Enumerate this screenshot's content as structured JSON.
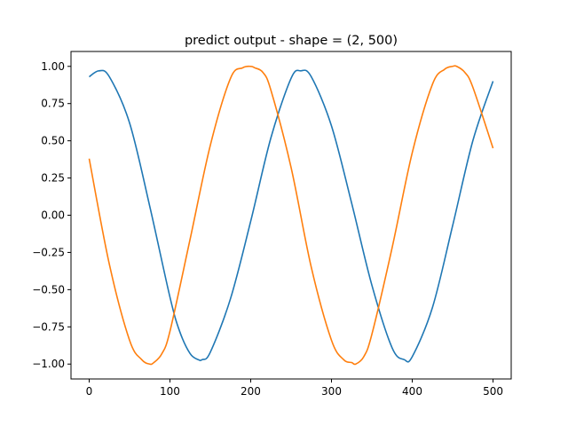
{
  "chart_data": {
    "type": "line",
    "title": "predict output - shape = (2, 500)",
    "xlabel": "",
    "ylabel": "",
    "xlim": [
      -22.5,
      522.5
    ],
    "ylim": [
      -1.1,
      1.1
    ],
    "xticks": [
      0,
      100,
      200,
      300,
      400,
      500
    ],
    "xtick_labels": [
      "0",
      "100",
      "200",
      "300",
      "400",
      "500"
    ],
    "yticks": [
      -1.0,
      -0.75,
      -0.5,
      -0.25,
      0.0,
      0.25,
      0.5,
      0.75,
      1.0
    ],
    "ytick_labels": [
      "−1.00",
      "−0.75",
      "−0.50",
      "−0.25",
      "0.00",
      "0.25",
      "0.50",
      "0.75",
      "1.00"
    ],
    "grid": false,
    "legend": "none",
    "series": [
      {
        "color": "#1f77b4",
        "x": [
          0,
          12,
          25,
          50,
          75,
          100,
          112,
          125,
          135,
          140,
          150,
          175,
          200,
          225,
          250,
          262,
          275,
          300,
          325,
          350,
          375,
          390,
          400,
          425,
          450,
          475,
          500
        ],
        "y": [
          0.93,
          0.97,
          0.93,
          0.62,
          0.06,
          -0.55,
          -0.78,
          -0.93,
          -0.97,
          -0.97,
          -0.92,
          -0.56,
          -0.04,
          0.52,
          0.92,
          0.97,
          0.93,
          0.6,
          0.08,
          -0.47,
          -0.89,
          -0.97,
          -0.95,
          -0.62,
          -0.07,
          0.5,
          0.9
        ]
      },
      {
        "color": "#ff7f0e",
        "x": [
          0,
          25,
          50,
          65,
          75,
          80,
          90,
          100,
          125,
          150,
          175,
          190,
          200,
          205,
          215,
          225,
          250,
          275,
          300,
          315,
          325,
          330,
          340,
          350,
          375,
          400,
          425,
          440,
          450,
          455,
          465,
          475,
          500
        ],
        "y": [
          0.38,
          -0.33,
          -0.84,
          -0.97,
          -1.0,
          -0.99,
          -0.93,
          -0.78,
          -0.16,
          0.47,
          0.92,
          0.99,
          1.0,
          0.99,
          0.96,
          0.84,
          0.32,
          -0.35,
          -0.84,
          -0.97,
          -0.99,
          -1.0,
          -0.95,
          -0.8,
          -0.22,
          0.42,
          0.88,
          0.98,
          1.0,
          1.0,
          0.96,
          0.86,
          0.45
        ]
      }
    ]
  }
}
